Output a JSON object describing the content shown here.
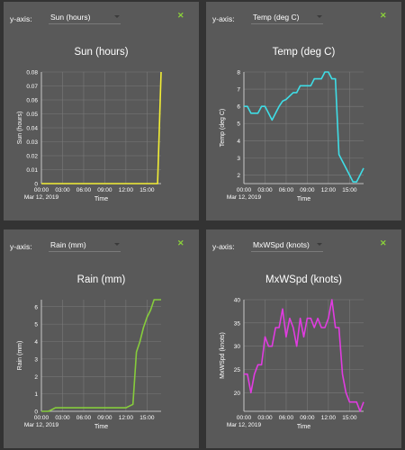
{
  "ui": {
    "yaxis_label": "y-axis:",
    "close_glyph": "✕",
    "close_color": "#8bd13a",
    "panel_bg": "#595959",
    "page_bg": "#333333"
  },
  "chart_data": [
    {
      "type": "line",
      "select_value": "Sun (hours)",
      "title": "Sun (hours)",
      "ylabel": "Sun (hours)",
      "xlabel": "Time",
      "date_label": "Mar 12, 2019",
      "color": "#f2ee35",
      "x_ticks": [
        "00:00",
        "03:00",
        "06:00",
        "09:00",
        "12:00",
        "15:00"
      ],
      "xlim": [
        0,
        17
      ],
      "ylim": [
        0,
        0.08
      ],
      "y_ticks": [
        "0",
        "0.01",
        "0.02",
        "0.03",
        "0.04",
        "0.05",
        "0.06",
        "0.07",
        "0.08"
      ],
      "y_tick_values": [
        0,
        0.01,
        0.02,
        0.03,
        0.04,
        0.05,
        0.06,
        0.07,
        0.08
      ],
      "x": [
        0,
        0.5,
        1,
        1.5,
        2,
        2.5,
        3,
        3.5,
        4,
        4.5,
        5,
        5.5,
        6,
        6.5,
        7,
        7.5,
        8,
        8.5,
        9,
        9.5,
        10,
        10.5,
        11,
        11.5,
        12,
        12.5,
        13,
        13.5,
        14,
        14.5,
        15,
        15.5,
        16,
        16.5,
        17
      ],
      "y": [
        0,
        0,
        0,
        0,
        0,
        0,
        0,
        0,
        0,
        0,
        0,
        0,
        0,
        0,
        0,
        0,
        0,
        0,
        0,
        0,
        0,
        0,
        0,
        0,
        0,
        0,
        0,
        0,
        0,
        0,
        0,
        0,
        0,
        0,
        0.08
      ]
    },
    {
      "type": "line",
      "select_value": "Temp (deg C)",
      "title": "Temp (deg C)",
      "ylabel": "Temp (deg C)",
      "xlabel": "Time",
      "date_label": "Mar 12, 2019",
      "color": "#3fdde6",
      "x_ticks": [
        "00:00",
        "03:00",
        "06:00",
        "09:00",
        "12:00",
        "15:00"
      ],
      "xlim": [
        0,
        17
      ],
      "ylim": [
        1.5,
        8
      ],
      "y_ticks": [
        "2",
        "3",
        "4",
        "5",
        "6",
        "7",
        "8"
      ],
      "y_tick_values": [
        2,
        3,
        4,
        5,
        6,
        7,
        8
      ],
      "x": [
        0,
        0.5,
        1,
        1.5,
        2,
        2.5,
        3,
        3.5,
        4,
        4.5,
        5,
        5.5,
        6,
        6.5,
        7,
        7.5,
        8,
        8.5,
        9,
        9.5,
        10,
        10.5,
        11,
        11.5,
        12,
        12.5,
        13,
        13.5,
        14,
        14.5,
        15,
        15.5,
        16,
        16.5,
        17
      ],
      "y": [
        6,
        6,
        5.6,
        5.6,
        5.6,
        6,
        6,
        5.6,
        5.2,
        5.6,
        6,
        6.3,
        6.4,
        6.6,
        6.8,
        6.8,
        7.2,
        7.2,
        7.2,
        7.2,
        7.6,
        7.6,
        7.6,
        8,
        8,
        7.6,
        7.6,
        3.2,
        2.8,
        2.4,
        2,
        1.6,
        1.6,
        2,
        2.4
      ]
    },
    {
      "type": "line",
      "select_value": "Rain (mm)",
      "title": "Rain (mm)",
      "ylabel": "Rain (mm)",
      "xlabel": "Time",
      "date_label": "Mar 12, 2019",
      "color": "#86cc3c",
      "x_ticks": [
        "00:00",
        "03:00",
        "06:00",
        "09:00",
        "12:00",
        "15:00"
      ],
      "xlim": [
        0,
        17
      ],
      "ylim": [
        0,
        6.4
      ],
      "y_ticks": [
        "0",
        "1",
        "2",
        "3",
        "4",
        "5",
        "6"
      ],
      "y_tick_values": [
        0,
        1,
        2,
        3,
        4,
        5,
        6
      ],
      "x": [
        0,
        0.5,
        1,
        1.5,
        2,
        2.5,
        3,
        3.5,
        4,
        4.5,
        5,
        5.5,
        6,
        6.5,
        7,
        7.5,
        8,
        8.5,
        9,
        9.5,
        10,
        10.5,
        11,
        11.5,
        12,
        12.5,
        13,
        13.5,
        14,
        14.5,
        15,
        15.5,
        16,
        16.5,
        17
      ],
      "y": [
        0,
        0,
        0,
        0.1,
        0.2,
        0.2,
        0.2,
        0.2,
        0.2,
        0.2,
        0.2,
        0.2,
        0.2,
        0.2,
        0.2,
        0.2,
        0.2,
        0.2,
        0.2,
        0.2,
        0.2,
        0.2,
        0.2,
        0.2,
        0.2,
        0.3,
        0.4,
        3.4,
        4,
        4.8,
        5.4,
        5.8,
        6.4,
        6.4,
        6.4
      ]
    },
    {
      "type": "line",
      "select_value": "MxWSpd (knots)",
      "title": "MxWSpd (knots)",
      "ylabel": "MxWSpd (knots)",
      "xlabel": "Time",
      "date_label": "Mar 12, 2019",
      "color": "#e03ce0",
      "x_ticks": [
        "00:00",
        "03:00",
        "06:00",
        "09:00",
        "12:00",
        "15:00"
      ],
      "xlim": [
        0,
        17
      ],
      "ylim": [
        16,
        40
      ],
      "y_ticks": [
        "20",
        "25",
        "30",
        "35",
        "40"
      ],
      "y_tick_values": [
        20,
        25,
        30,
        35,
        40
      ],
      "x": [
        0,
        0.5,
        1,
        1.5,
        2,
        2.5,
        3,
        3.5,
        4,
        4.5,
        5,
        5.5,
        6,
        6.5,
        7,
        7.5,
        8,
        8.5,
        9,
        9.5,
        10,
        10.5,
        11,
        11.5,
        12,
        12.5,
        13,
        13.5,
        14,
        14.5,
        15,
        15.5,
        16,
        16.5,
        17
      ],
      "y": [
        24,
        24,
        20,
        24,
        26,
        26,
        32,
        30,
        30,
        34,
        34,
        38,
        32,
        36,
        34,
        30,
        36,
        32,
        36,
        36,
        34,
        36,
        34,
        34,
        36,
        40,
        34,
        34,
        24,
        20,
        18,
        18,
        18,
        16,
        18
      ]
    }
  ]
}
